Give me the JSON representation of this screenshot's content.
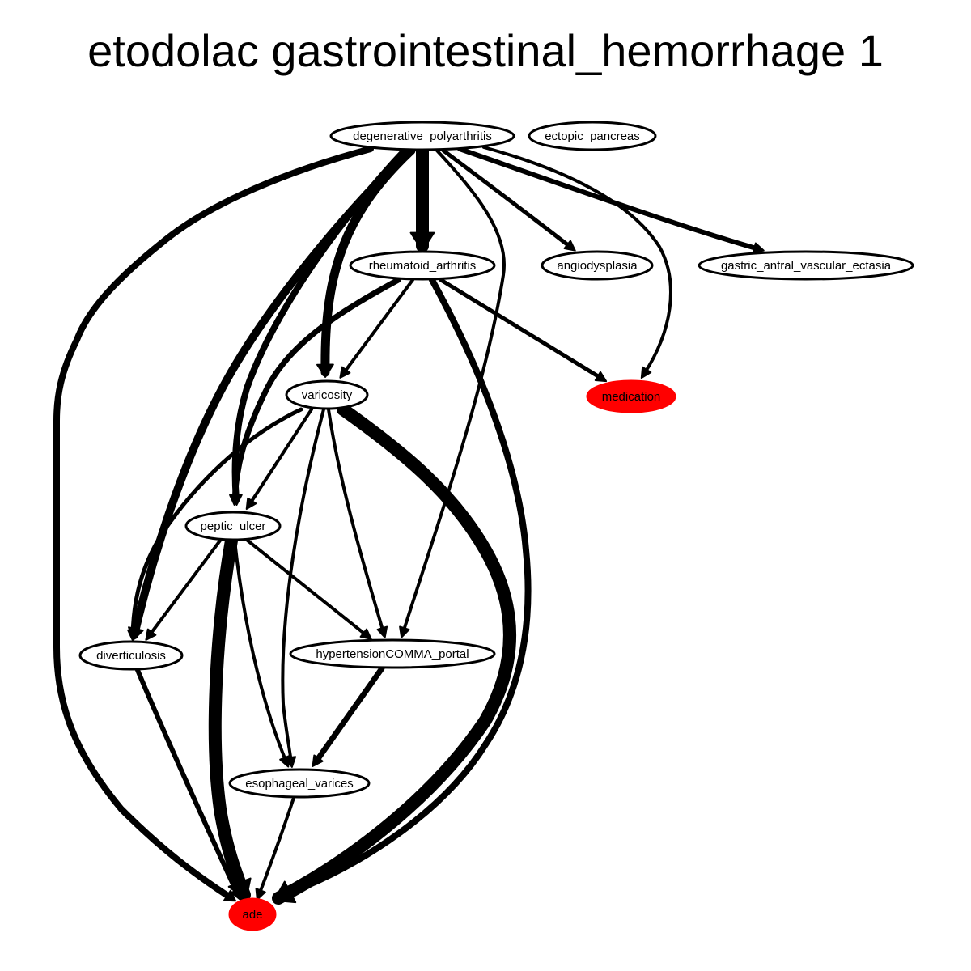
{
  "title": "etodolac gastrointestinal_hemorrhage 1",
  "colors": {
    "default_fill": "#ffffff",
    "highlight_fill": "#ff0000",
    "stroke": "#000000"
  },
  "nodes": [
    {
      "id": "degenerative_polyarthritis",
      "label": "degenerative_polyarthritis",
      "highlight": false
    },
    {
      "id": "ectopic_pancreas",
      "label": "ectopic_pancreas",
      "highlight": false
    },
    {
      "id": "rheumatoid_arthritis",
      "label": "rheumatoid_arthritis",
      "highlight": false
    },
    {
      "id": "angiodysplasia",
      "label": "angiodysplasia",
      "highlight": false
    },
    {
      "id": "gastric_antral_vascular_ectasia",
      "label": "gastric_antral_vascular_ectasia",
      "highlight": false
    },
    {
      "id": "varicosity",
      "label": "varicosity",
      "highlight": false
    },
    {
      "id": "medication",
      "label": "medication",
      "highlight": true
    },
    {
      "id": "peptic_ulcer",
      "label": "peptic_ulcer",
      "highlight": false
    },
    {
      "id": "diverticulosis",
      "label": "diverticulosis",
      "highlight": false
    },
    {
      "id": "hypertensionCOMMA_portal",
      "label": "hypertensionCOMMA_portal",
      "highlight": false
    },
    {
      "id": "esophageal_varices",
      "label": "esophageal_varices",
      "highlight": false
    },
    {
      "id": "ade",
      "label": "ade",
      "highlight": true
    }
  ],
  "edges": [
    {
      "source": "degenerative_polyarthritis",
      "target": "rheumatoid_arthritis",
      "weight": 16
    },
    {
      "source": "degenerative_polyarthritis",
      "target": "angiodysplasia",
      "weight": 5
    },
    {
      "source": "degenerative_polyarthritis",
      "target": "gastric_antral_vascular_ectasia",
      "weight": 6
    },
    {
      "source": "degenerative_polyarthritis",
      "target": "medication",
      "weight": 4
    },
    {
      "source": "degenerative_polyarthritis",
      "target": "varicosity",
      "weight": 11
    },
    {
      "source": "degenerative_polyarthritis",
      "target": "peptic_ulcer",
      "weight": 8
    },
    {
      "source": "degenerative_polyarthritis",
      "target": "diverticulosis",
      "weight": 10
    },
    {
      "source": "degenerative_polyarthritis",
      "target": "hypertensionCOMMA_portal",
      "weight": 4
    },
    {
      "source": "degenerative_polyarthritis",
      "target": "ade",
      "weight": 8
    },
    {
      "source": "rheumatoid_arthritis",
      "target": "varicosity",
      "weight": 4
    },
    {
      "source": "rheumatoid_arthritis",
      "target": "medication",
      "weight": 5
    },
    {
      "source": "rheumatoid_arthritis",
      "target": "peptic_ulcer",
      "weight": 7
    },
    {
      "source": "rheumatoid_arthritis",
      "target": "ade",
      "weight": 8
    },
    {
      "source": "varicosity",
      "target": "peptic_ulcer",
      "weight": 4
    },
    {
      "source": "varicosity",
      "target": "diverticulosis",
      "weight": 5
    },
    {
      "source": "varicosity",
      "target": "hypertensionCOMMA_portal",
      "weight": 4
    },
    {
      "source": "varicosity",
      "target": "esophageal_varices",
      "weight": 4
    },
    {
      "source": "varicosity",
      "target": "ade",
      "weight": 16
    },
    {
      "source": "peptic_ulcer",
      "target": "diverticulosis",
      "weight": 4
    },
    {
      "source": "peptic_ulcer",
      "target": "hypertensionCOMMA_portal",
      "weight": 4
    },
    {
      "source": "peptic_ulcer",
      "target": "esophageal_varices",
      "weight": 4
    },
    {
      "source": "peptic_ulcer",
      "target": "ade",
      "weight": 16
    },
    {
      "source": "diverticulosis",
      "target": "ade",
      "weight": 6
    },
    {
      "source": "hypertensionCOMMA_portal",
      "target": "esophageal_varices",
      "weight": 7
    },
    {
      "source": "esophageal_varices",
      "target": "ade",
      "weight": 4
    }
  ]
}
